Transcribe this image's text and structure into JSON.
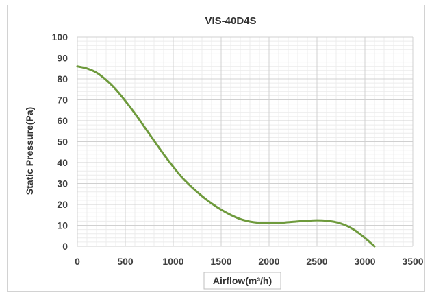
{
  "chart_data": {
    "type": "line",
    "title": "VIS-40D4S",
    "xlabel": "Airflow(m³/h)",
    "ylabel": "Static Pressure(Pa)",
    "xlim": [
      0,
      3500
    ],
    "ylim": [
      0,
      100
    ],
    "x_ticks": [
      "0",
      "500",
      "1000",
      "1500",
      "2000",
      "2500",
      "3000",
      "3500"
    ],
    "y_ticks": [
      "0",
      "10",
      "20",
      "30",
      "40",
      "50",
      "60",
      "70",
      "80",
      "90",
      "100"
    ],
    "grid": true,
    "series": [
      {
        "color": "#6e9a3c",
        "x": [
          0,
          100,
          200,
          300,
          400,
          500,
          600,
          700,
          800,
          900,
          1000,
          1100,
          1200,
          1300,
          1400,
          1500,
          1600,
          1700,
          1800,
          1900,
          2000,
          2100,
          2200,
          2300,
          2400,
          2500,
          2600,
          2700,
          2800,
          2900,
          3000,
          3050,
          3100
        ],
        "y": [
          86,
          85,
          83,
          79.5,
          75,
          69.5,
          63.5,
          57,
          50.5,
          44,
          38,
          32.5,
          28,
          24,
          20.5,
          17.5,
          15,
          13,
          11.8,
          11.2,
          11,
          11.1,
          11.5,
          11.9,
          12.2,
          12.4,
          12.2,
          11.5,
          10,
          7.5,
          4,
          2,
          0
        ]
      }
    ]
  }
}
